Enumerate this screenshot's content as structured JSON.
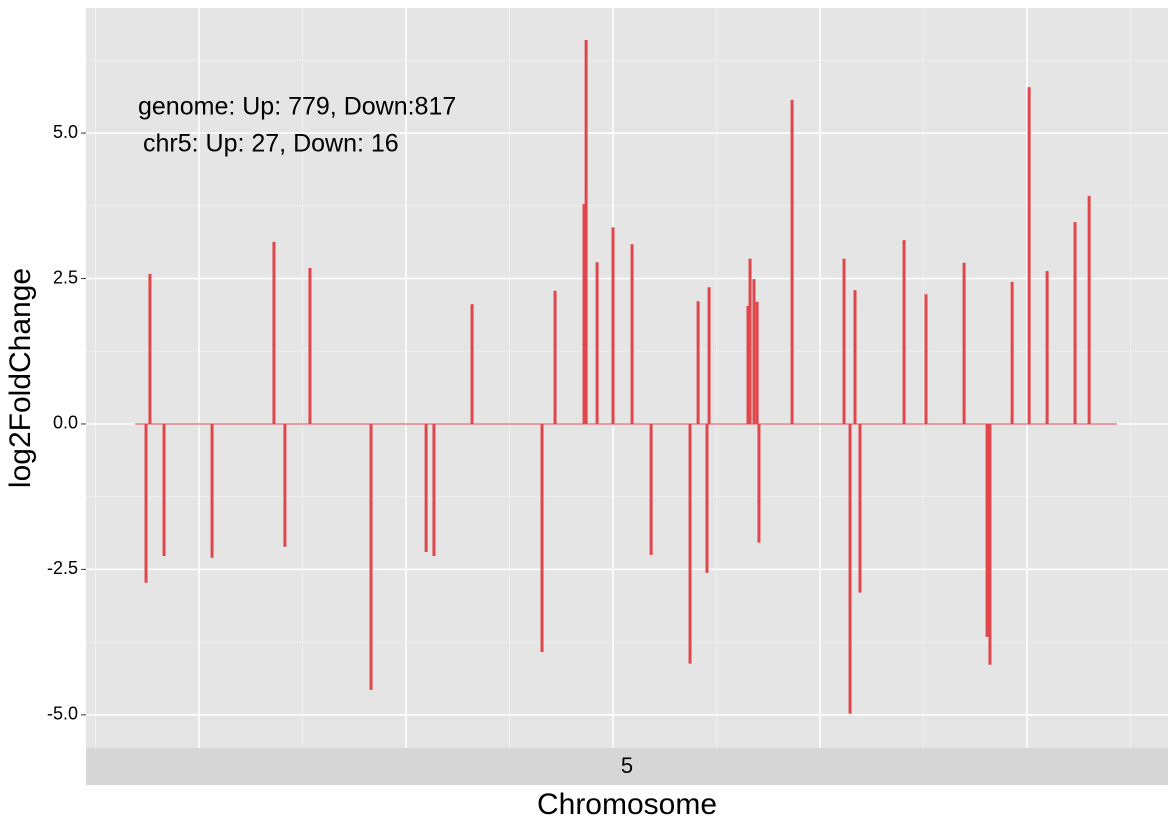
{
  "chart_data": {
    "type": "spike",
    "annotations": [
      "genome: Up: 779, Down:817",
      "chr5: Up: 27, Down: 16"
    ],
    "facet_label": "5",
    "x_label": "Chromosome",
    "y_label": "log2FoldChange",
    "color": "#e0474c",
    "x": [
      0.744,
      0.763,
      0.831,
      1.063,
      1.362,
      1.415,
      1.536,
      1.831,
      2.097,
      2.135,
      2.319,
      2.657,
      2.72,
      2.86,
      2.87,
      2.923,
      3.0,
      3.092,
      3.184,
      3.372,
      3.411,
      3.454,
      3.464,
      3.652,
      3.662,
      3.681,
      3.696,
      3.705,
      3.865,
      4.116,
      4.145,
      4.169,
      4.193,
      4.406,
      4.512,
      4.696,
      4.807,
      4.821,
      4.928,
      5.01,
      5.097,
      5.232,
      5.3
    ],
    "values": [
      -2.73,
      2.58,
      -2.27,
      -2.3,
      3.13,
      -2.11,
      2.68,
      -4.57,
      -2.2,
      -2.27,
      2.06,
      -3.92,
      2.29,
      3.78,
      6.6,
      2.78,
      3.38,
      3.09,
      -2.25,
      -4.12,
      2.11,
      -2.56,
      2.35,
      2.03,
      2.84,
      2.49,
      2.1,
      -2.04,
      5.57,
      2.84,
      -4.98,
      2.3,
      -2.9,
      3.16,
      2.23,
      2.77,
      -3.66,
      -4.14,
      2.44,
      5.79,
      2.63,
      3.47,
      3.92
    ],
    "xlim": [
      0.454,
      5.681
    ],
    "xticks": [
      1,
      2,
      3,
      4,
      5
    ],
    "ylim": [
      -5.57,
      7.15
    ],
    "yticks": [
      {
        "value": -5,
        "label": "-5.0"
      },
      {
        "value": -2.5,
        "label": "-2.5"
      },
      {
        "value": 0,
        "label": "0.0"
      },
      {
        "value": 2.5,
        "label": "2.5"
      },
      {
        "value": 5,
        "label": "5.0"
      }
    ],
    "grid": true
  }
}
